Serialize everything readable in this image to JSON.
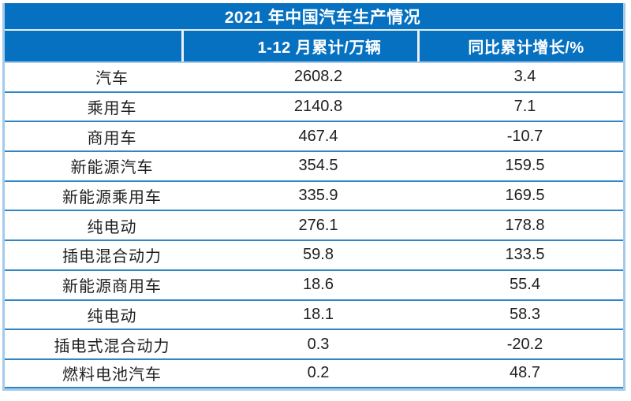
{
  "chart_data": {
    "type": "table",
    "title": "2021 年中国汽车生产情况",
    "columns": [
      "",
      "1-12 月累计/万辆",
      "同比累计增长/%"
    ],
    "rows": [
      [
        "汽车",
        "2608.2",
        "3.4"
      ],
      [
        "乘用车",
        "2140.8",
        "7.1"
      ],
      [
        "商用车",
        "467.4",
        "-10.7"
      ],
      [
        "新能源汽车",
        "354.5",
        "159.5"
      ],
      [
        "新能源乘用车",
        "335.9",
        "169.5"
      ],
      [
        "纯电动",
        "276.1",
        "178.8"
      ],
      [
        "插电混合动力",
        "59.8",
        "133.5"
      ],
      [
        "新能源商用车",
        "18.6",
        "55.4"
      ],
      [
        "纯电动",
        "18.1",
        "58.3"
      ],
      [
        "插电式混合动力",
        "0.3",
        "-20.2"
      ],
      [
        "燃料电池汽车",
        "0.2",
        "48.7"
      ]
    ],
    "units": {
      "column_2": "万辆",
      "column_3": "%"
    }
  },
  "colors": {
    "blue": "#0771C1",
    "sep": "#2E86C6",
    "outer": "#A5CBE9",
    "hdiv": "#EDEFF2",
    "tdiv": "#E6EDF4",
    "lightsep": "#AACCEA",
    "ink": "#1F1F1F",
    "white": "#FFFFFF"
  }
}
